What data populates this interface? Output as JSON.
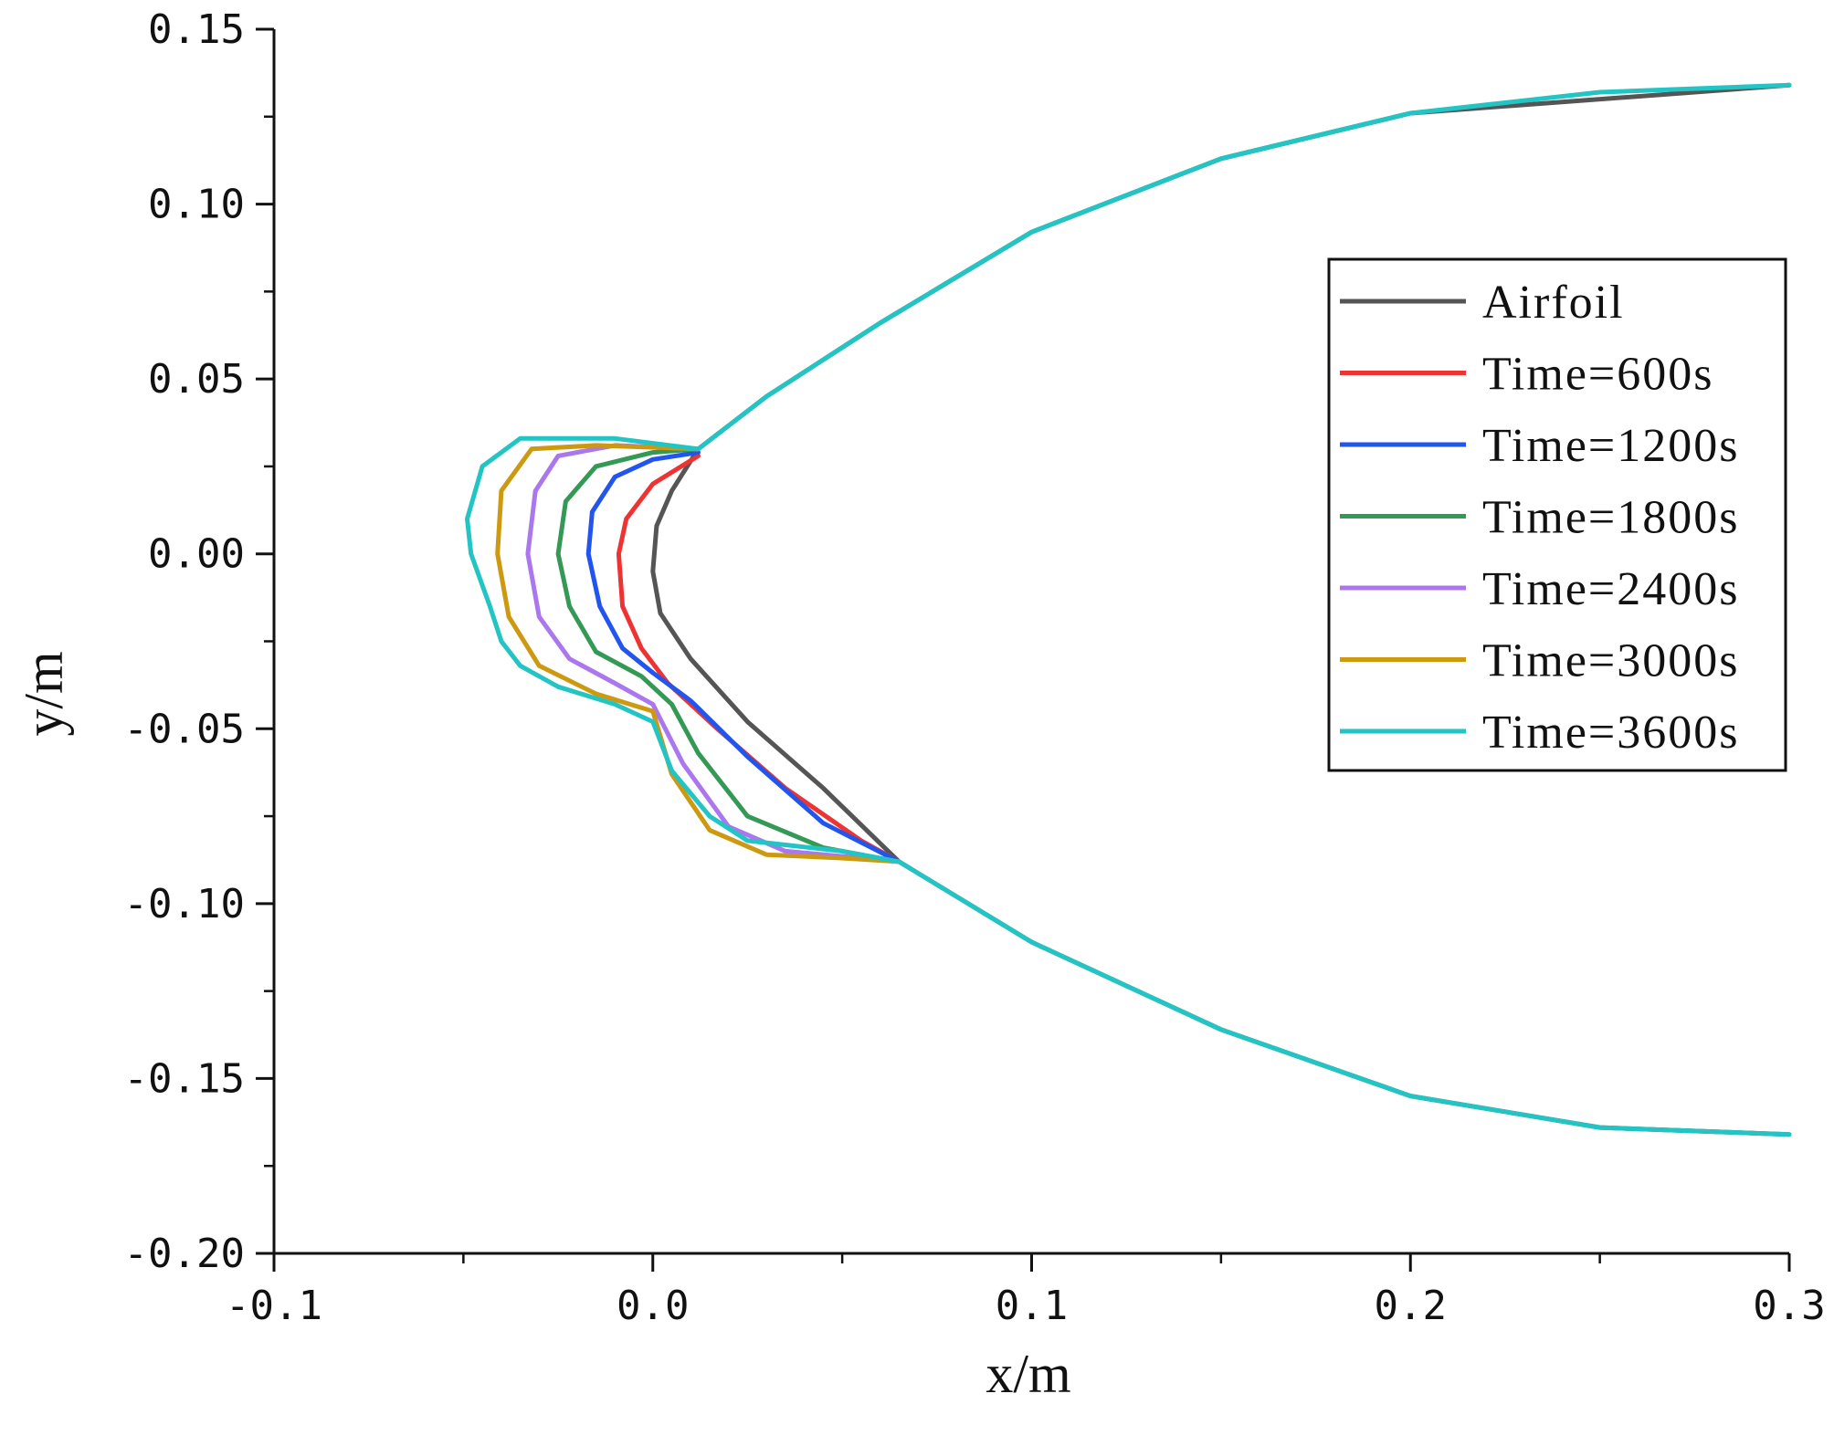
{
  "chart_data": {
    "type": "line",
    "xlabel": "x/m",
    "ylabel": "y/m",
    "xlim": [
      -0.1,
      0.3
    ],
    "ylim": [
      -0.2,
      0.15
    ],
    "x_ticks": [
      -0.1,
      0.0,
      0.1,
      0.2,
      0.3
    ],
    "x_tick_labels": [
      "-0.1",
      "0.0",
      "0.1",
      "0.2",
      "0.3"
    ],
    "y_ticks": [
      0.15,
      0.1,
      0.05,
      0.0,
      -0.05,
      -0.1,
      -0.15,
      -0.2
    ],
    "y_tick_labels": [
      "0.15",
      "0.10",
      "0.05",
      "0.00",
      "-0.05",
      "-0.10",
      "-0.15",
      "-0.20"
    ],
    "grid": false,
    "legend_position": "right",
    "series": [
      {
        "name": "Airfoil",
        "color": "#555555",
        "x": [
          0.3,
          0.2,
          0.15,
          0.1,
          0.06,
          0.03,
          0.012,
          0.005,
          0.001,
          0.0,
          0.002,
          0.01,
          0.025,
          0.045,
          0.065,
          0.1,
          0.15,
          0.2,
          0.25,
          0.3
        ],
        "y": [
          0.134,
          0.126,
          0.113,
          0.092,
          0.066,
          0.045,
          0.03,
          0.018,
          0.008,
          -0.005,
          -0.017,
          -0.03,
          -0.048,
          -0.067,
          -0.088,
          -0.111,
          -0.136,
          -0.155,
          -0.164,
          -0.166
        ]
      },
      {
        "name": "Time=600s",
        "color": "#ee3333",
        "x": [
          0.012,
          0.0,
          -0.007,
          -0.009,
          -0.008,
          -0.003,
          0.004,
          0.017,
          0.035,
          0.055,
          0.065
        ],
        "y": [
          0.028,
          0.02,
          0.01,
          0.0,
          -0.015,
          -0.027,
          -0.037,
          -0.05,
          -0.067,
          -0.082,
          -0.088
        ]
      },
      {
        "name": "Time=1200s",
        "color": "#2255ee",
        "x": [
          0.012,
          0.0,
          -0.01,
          -0.016,
          -0.017,
          -0.014,
          -0.008,
          0.0,
          0.01,
          0.025,
          0.045,
          0.065
        ],
        "y": [
          0.029,
          0.027,
          0.022,
          0.012,
          0.0,
          -0.015,
          -0.027,
          -0.034,
          -0.042,
          -0.058,
          -0.077,
          -0.088
        ]
      },
      {
        "name": "Time=1800s",
        "color": "#339955",
        "x": [
          0.012,
          0.0,
          -0.015,
          -0.023,
          -0.025,
          -0.022,
          -0.015,
          -0.003,
          0.005,
          0.012,
          0.025,
          0.045,
          0.065
        ],
        "y": [
          0.03,
          0.029,
          0.025,
          0.015,
          0.0,
          -0.015,
          -0.028,
          -0.035,
          -0.043,
          -0.057,
          -0.075,
          -0.084,
          -0.088
        ]
      },
      {
        "name": "Time=2400s",
        "color": "#aa77ee",
        "x": [
          0.012,
          -0.01,
          -0.025,
          -0.031,
          -0.033,
          -0.03,
          -0.022,
          -0.01,
          0.0,
          0.008,
          0.02,
          0.035,
          0.055,
          0.065
        ],
        "y": [
          0.03,
          0.031,
          0.028,
          0.018,
          0.0,
          -0.018,
          -0.03,
          -0.037,
          -0.043,
          -0.06,
          -0.078,
          -0.085,
          -0.087,
          -0.088
        ]
      },
      {
        "name": "Time=3000s",
        "color": "#cc9911",
        "x": [
          0.012,
          -0.015,
          -0.032,
          -0.04,
          -0.041,
          -0.038,
          -0.03,
          -0.015,
          0.0,
          0.005,
          0.015,
          0.03,
          0.05,
          0.065
        ],
        "y": [
          0.03,
          0.031,
          0.03,
          0.018,
          0.0,
          -0.018,
          -0.032,
          -0.04,
          -0.045,
          -0.063,
          -0.079,
          -0.086,
          -0.087,
          -0.088
        ]
      },
      {
        "name": "Time=3600s",
        "color": "#22c4c4",
        "x": [
          0.3,
          0.25,
          0.2,
          0.15,
          0.1,
          0.06,
          0.03,
          0.012,
          -0.01,
          -0.035,
          -0.045,
          -0.049,
          -0.048,
          -0.043,
          -0.04,
          -0.035,
          -0.025,
          -0.01,
          0.0,
          0.005,
          0.015,
          0.025,
          0.05,
          0.065,
          0.1,
          0.15,
          0.2,
          0.25,
          0.3
        ],
        "y": [
          0.134,
          0.132,
          0.126,
          0.113,
          0.092,
          0.066,
          0.045,
          0.03,
          0.033,
          0.033,
          0.025,
          0.01,
          0.0,
          -0.015,
          -0.025,
          -0.032,
          -0.038,
          -0.043,
          -0.048,
          -0.062,
          -0.075,
          -0.082,
          -0.085,
          -0.088,
          -0.111,
          -0.136,
          -0.155,
          -0.164,
          -0.166
        ]
      }
    ]
  }
}
